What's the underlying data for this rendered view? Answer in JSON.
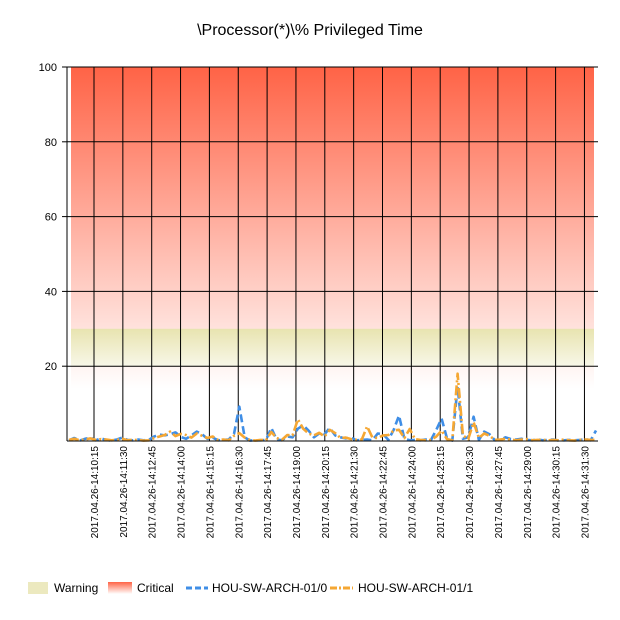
{
  "chart_data": {
    "type": "line",
    "title": "\\Processor(*)\\% Privileged Time",
    "xlabel": "",
    "ylabel": "",
    "ylim": [
      0,
      100
    ],
    "y_ticks": [
      20,
      40,
      60,
      80,
      100
    ],
    "x_tick_labels": [
      "2017.04.26-14:10:15",
      "2017.04.26-14:11:30",
      "2017.04.26-14:12:45",
      "2017.04.26-14:14:00",
      "2017.04.26-14:15:15",
      "2017.04.26-14:16:30",
      "2017.04.26-14:17:45",
      "2017.04.26-14:19:00",
      "2017.04.26-14:20:15",
      "2017.04.26-14:21:30",
      "2017.04.26-14:22:45",
      "2017.04.26-14:24:00",
      "2017.04.26-14:25:15",
      "2017.04.26-14:26:30",
      "2017.04.26-14:27:45",
      "2017.04.26-14:29:00",
      "2017.04.26-14:30:15",
      "2017.04.26-14:31:30"
    ],
    "grid": true,
    "legend_position": "bottom",
    "thresholds": [
      {
        "name": "Warning",
        "from": 20,
        "to": 30,
        "color": "#ece9bf"
      },
      {
        "name": "Critical",
        "from": 30,
        "to": 100,
        "color_top": "#ff6346",
        "color_bottom": "#ffffff"
      }
    ],
    "series": [
      {
        "name": "HOU-SW-ARCH-01/0",
        "color": "#3f8ee6",
        "style": "dashed",
        "values": [
          0.2,
          0.8,
          0.1,
          0.6,
          0.9,
          0.2,
          0.7,
          0.3,
          0.1,
          0.4,
          0.9,
          0.3,
          0.2,
          0.4,
          0.2,
          0.3,
          1.2,
          1.7,
          1.5,
          1.8,
          2.3,
          1.1,
          0.6,
          1.5,
          2.5,
          1.8,
          0.6,
          0.9,
          0.2,
          0.3,
          0.4,
          1.9,
          9.2,
          1.0,
          0.1,
          0.2,
          0.2,
          0.3,
          3.5,
          0.4,
          0.2,
          1.2,
          1.0,
          3.3,
          4.2,
          2.8,
          1.0,
          2.0,
          1.8,
          3.5,
          1.5,
          1.0,
          0.7,
          0.9,
          0.2,
          0.3,
          0.4,
          0.2,
          2.0,
          1.8,
          0.3,
          3.0,
          6.8,
          0.6,
          0.2,
          0.3,
          0.2,
          0.4,
          0.3,
          3.0,
          6.0,
          0.8,
          0.1,
          14.5,
          0.6,
          1.0,
          6.5,
          0.3,
          2.5,
          1.8,
          0.2,
          0.3,
          1.0,
          0.5,
          0.4,
          0.6,
          0.3,
          0.2,
          0.4,
          0.2,
          0.3,
          0.4,
          0.1,
          0.2,
          0.3,
          0.2,
          0.3,
          0.5,
          0.2,
          2.8
        ]
      },
      {
        "name": "HOU-SW-ARCH-01/1",
        "color": "#f5a733",
        "style": "dashdot",
        "values": [
          0.3,
          0.6,
          0.2,
          0.4,
          0.7,
          0.3,
          0.5,
          0.4,
          0.2,
          0.3,
          0.6,
          0.2,
          0.3,
          0.3,
          0.1,
          0.2,
          0.8,
          1.2,
          1.6,
          2.5,
          1.3,
          1.9,
          1.6,
          0.9,
          2.0,
          1.4,
          0.8,
          1.2,
          0.3,
          0.4,
          0.2,
          1.4,
          2.1,
          0.9,
          0.3,
          0.1,
          0.3,
          0.2,
          2.4,
          0.8,
          0.3,
          1.6,
          1.5,
          5.8,
          3.3,
          2.0,
          1.5,
          2.2,
          1.2,
          3.0,
          2.1,
          0.8,
          0.9,
          0.5,
          0.3,
          0.4,
          3.9,
          0.9,
          0.8,
          1.5,
          1.6,
          2.8,
          3.0,
          0.8,
          3.2,
          0.5,
          0.3,
          0.2,
          0.3,
          1.2,
          2.8,
          0.5,
          0.2,
          18.0,
          1.5,
          0.5,
          5.0,
          0.8,
          2.0,
          1.4,
          0.3,
          0.4,
          0.6,
          0.4,
          0.2,
          0.4,
          0.5,
          0.2,
          0.3,
          0.3,
          0.2,
          0.3,
          0.2,
          0.4,
          0.2,
          0.1,
          0.3,
          0.4,
          0.3,
          0.3
        ]
      }
    ]
  }
}
